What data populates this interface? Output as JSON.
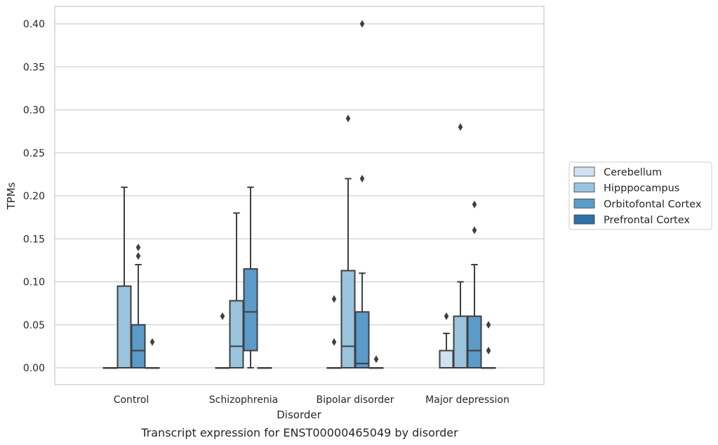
{
  "chart_data": {
    "type": "box",
    "xlabel": "Disorder",
    "ylabel": "TPMs",
    "caption": "Transcript expression for ENST00000465049 by disorder",
    "categories": [
      "Control",
      "Schizophrenia",
      "Bipolar disorder",
      "Major depression"
    ],
    "ylim": [
      -0.02,
      0.42
    ],
    "yticks": [
      "0.00",
      "0.05",
      "0.10",
      "0.15",
      "0.20",
      "0.25",
      "0.30",
      "0.35",
      "0.40"
    ],
    "grid": "horizontal",
    "legend_placement": "right",
    "series": [
      {
        "name": "Cerebellum",
        "color": "#d0e1f2",
        "boxes": [
          {
            "whislo": 0,
            "q1": 0,
            "med": 0,
            "q3": 0,
            "whishi": 0,
            "fliers": []
          },
          {
            "whislo": 0,
            "q1": 0,
            "med": 0,
            "q3": 0,
            "whishi": 0,
            "fliers": [
              0.06
            ]
          },
          {
            "whislo": 0,
            "q1": 0,
            "med": 0,
            "q3": 0,
            "whishi": 0,
            "fliers": [
              0.03,
              0.08
            ]
          },
          {
            "whislo": 0,
            "q1": 0,
            "med": 0,
            "q3": 0.02,
            "whishi": 0.04,
            "fliers": [
              0.06
            ]
          }
        ]
      },
      {
        "name": "Hipppocampus",
        "color": "#9ac3dd",
        "boxes": [
          {
            "whislo": 0,
            "q1": 0,
            "med": 0,
            "q3": 0.095,
            "whishi": 0.21,
            "fliers": []
          },
          {
            "whislo": 0,
            "q1": 0,
            "med": 0.025,
            "q3": 0.078,
            "whishi": 0.18,
            "fliers": []
          },
          {
            "whislo": 0,
            "q1": 0,
            "med": 0.025,
            "q3": 0.113,
            "whishi": 0.22,
            "fliers": [
              0.29
            ]
          },
          {
            "whislo": 0,
            "q1": 0,
            "med": 0.06,
            "q3": 0.06,
            "whishi": 0.1,
            "fliers": [
              0.28
            ]
          }
        ]
      },
      {
        "name": "Orbitofontal Cortex",
        "color": "#5b9bc9",
        "boxes": [
          {
            "whislo": 0,
            "q1": 0,
            "med": 0.02,
            "q3": 0.05,
            "whishi": 0.12,
            "fliers": [
              0.13,
              0.14
            ]
          },
          {
            "whislo": 0,
            "q1": 0.02,
            "med": 0.065,
            "q3": 0.115,
            "whishi": 0.21,
            "fliers": []
          },
          {
            "whislo": 0,
            "q1": 0,
            "med": 0.005,
            "q3": 0.065,
            "whishi": 0.11,
            "fliers": [
              0.22,
              0.4
            ]
          },
          {
            "whislo": 0,
            "q1": 0,
            "med": 0.02,
            "q3": 0.06,
            "whishi": 0.12,
            "fliers": [
              0.16,
              0.19
            ]
          }
        ]
      },
      {
        "name": "Prefrontal Cortex",
        "color": "#2f6ea7",
        "boxes": [
          {
            "whislo": 0,
            "q1": 0,
            "med": 0,
            "q3": 0,
            "whishi": 0,
            "fliers": [
              0.03
            ]
          },
          {
            "whislo": 0,
            "q1": 0,
            "med": 0,
            "q3": 0,
            "whishi": 0,
            "fliers": []
          },
          {
            "whislo": 0,
            "q1": 0,
            "med": 0,
            "q3": 0,
            "whishi": 0,
            "fliers": [
              0.01
            ]
          },
          {
            "whislo": 0,
            "q1": 0,
            "med": 0,
            "q3": 0,
            "whishi": 0,
            "fliers": [
              0.02,
              0.05
            ]
          }
        ]
      }
    ]
  }
}
